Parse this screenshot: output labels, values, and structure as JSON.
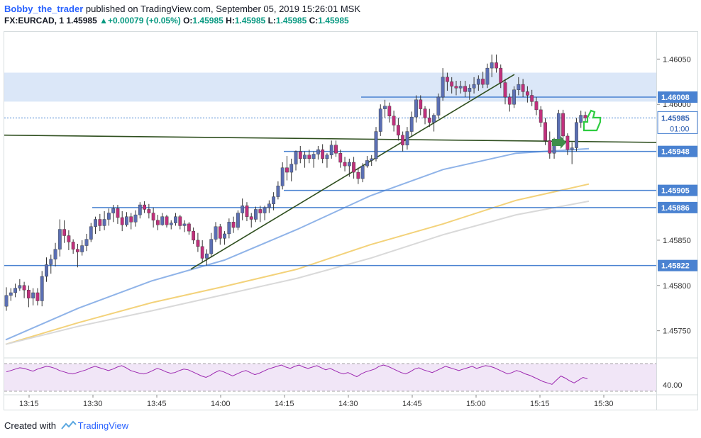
{
  "header": {
    "author": "Bobby_the_trader",
    "published_text": "published on TradingView.com, September 05, 2019 15:26:01 MSK",
    "symbol": "FX:EURCAD, 1",
    "last": "1.45985",
    "change": "+0.00079 (+0.05%)",
    "o_label": "O:",
    "o": "1.45985",
    "h_label": "H:",
    "h": "1.45985",
    "l_label": "L:",
    "l": "1.45985",
    "c_label": "C:",
    "c": "1.45985"
  },
  "footer": {
    "created_with": "Created with",
    "brand": "TradingView"
  },
  "colors": {
    "up": "#5b6fb3",
    "down": "#c0307c",
    "blue_ma": "#8fb3e8",
    "yellow_ma": "#f3d27a",
    "gray_ma": "#d9d9d9",
    "level": "#4a82d1",
    "trend": "#2f4f1f",
    "zone": "#dbe7f8",
    "rsi_bg": "#f1e6f7",
    "rsi_line": "#9c27b0",
    "icons": "#2e7d32"
  },
  "chart_data": {
    "type": "candlestick",
    "instrument": "FX:EURCAD",
    "timeframe": "1",
    "x_tick_labels": [
      "13:15",
      "13:30",
      "13:45",
      "14:00",
      "14:15",
      "14:30",
      "14:45",
      "15:00",
      "15:15",
      "15:30"
    ],
    "y_tick_labels": [
      "1.46050",
      "1.46000",
      "1.45850",
      "1.45800",
      "1.45750"
    ],
    "price_range": [
      1.4572,
      1.4608
    ],
    "resistance_zone": [
      1.46003,
      1.46035
    ],
    "horizontal_levels": [
      {
        "label": "1.46008",
        "value": 1.46008
      },
      {
        "label": "1.45948",
        "value": 1.45948
      },
      {
        "label": "1.45905",
        "value": 1.45905
      },
      {
        "label": "1.45886",
        "value": 1.45886
      },
      {
        "label": "1.45822",
        "value": 1.45822
      }
    ],
    "current_price": {
      "label": "1.45985",
      "value": 1.45985,
      "countdown": "01:00"
    },
    "rising_trendline": [
      {
        "time": "13:53",
        "price": 1.45818
      },
      {
        "time": "15:09",
        "price": 1.46033
      }
    ],
    "flat_trendline": [
      {
        "time": "13:09",
        "price": 1.45966
      },
      {
        "time": "15:33",
        "price": 1.45958
      }
    ],
    "candles_ohlc": [
      [
        1.45777,
        1.45798,
        1.45772,
        1.45789
      ],
      [
        1.45789,
        1.45797,
        1.45783,
        1.45792
      ],
      [
        1.45792,
        1.45802,
        1.45787,
        1.45797
      ],
      [
        1.45797,
        1.45807,
        1.45794,
        1.458
      ],
      [
        1.458,
        1.45804,
        1.45786,
        1.45795
      ],
      [
        1.45795,
        1.458,
        1.45776,
        1.45786
      ],
      [
        1.45786,
        1.45797,
        1.45778,
        1.45792
      ],
      [
        1.45792,
        1.45797,
        1.45778,
        1.45783
      ],
      [
        1.45783,
        1.45816,
        1.45777,
        1.4581
      ],
      [
        1.4581,
        1.45831,
        1.45804,
        1.45823
      ],
      [
        1.45823,
        1.45834,
        1.45813,
        1.45829
      ],
      [
        1.45829,
        1.45847,
        1.45821,
        1.4584
      ],
      [
        1.4584,
        1.45873,
        1.45832,
        1.45862
      ],
      [
        1.45862,
        1.45872,
        1.45847,
        1.45855
      ],
      [
        1.45855,
        1.45861,
        1.45839,
        1.45848
      ],
      [
        1.45848,
        1.45851,
        1.45835,
        1.4584
      ],
      [
        1.4584,
        1.45846,
        1.4582,
        1.45837
      ],
      [
        1.45837,
        1.4585,
        1.45833,
        1.45844
      ],
      [
        1.45844,
        1.45857,
        1.45838,
        1.45851
      ],
      [
        1.45851,
        1.45869,
        1.45848,
        1.45865
      ],
      [
        1.45865,
        1.45876,
        1.45857,
        1.45873
      ],
      [
        1.45873,
        1.45879,
        1.4586,
        1.45866
      ],
      [
        1.45866,
        1.45882,
        1.45861,
        1.45873
      ],
      [
        1.45873,
        1.45885,
        1.45866,
        1.4588
      ],
      [
        1.4588,
        1.45889,
        1.4587,
        1.45885
      ],
      [
        1.45885,
        1.45889,
        1.45868,
        1.45875
      ],
      [
        1.45875,
        1.45882,
        1.4586,
        1.45867
      ],
      [
        1.45867,
        1.45881,
        1.45865,
        1.45876
      ],
      [
        1.45876,
        1.4588,
        1.45862,
        1.4587
      ],
      [
        1.4587,
        1.45883,
        1.45865,
        1.45878
      ],
      [
        1.45878,
        1.45892,
        1.45874,
        1.45889
      ],
      [
        1.45889,
        1.45893,
        1.4588,
        1.45884
      ],
      [
        1.45884,
        1.4589,
        1.45874,
        1.4588
      ],
      [
        1.4588,
        1.45886,
        1.45864,
        1.45872
      ],
      [
        1.45872,
        1.45878,
        1.45861,
        1.45867
      ],
      [
        1.45867,
        1.4588,
        1.45866,
        1.45876
      ],
      [
        1.45876,
        1.45878,
        1.45864,
        1.45867
      ],
      [
        1.45867,
        1.45872,
        1.45862,
        1.45869
      ],
      [
        1.45869,
        1.4588,
        1.45866,
        1.45876
      ],
      [
        1.45876,
        1.45878,
        1.45862,
        1.45866
      ],
      [
        1.45866,
        1.45872,
        1.45859,
        1.45868
      ],
      [
        1.45868,
        1.4587,
        1.45856,
        1.4586
      ],
      [
        1.4586,
        1.45864,
        1.45846,
        1.4585
      ],
      [
        1.4585,
        1.45858,
        1.45837,
        1.45843
      ],
      [
        1.45843,
        1.4585,
        1.45826,
        1.4583
      ],
      [
        1.4583,
        1.4584,
        1.45822,
        1.45835
      ],
      [
        1.45835,
        1.45858,
        1.45831,
        1.45851
      ],
      [
        1.45851,
        1.4587,
        1.45848,
        1.45865
      ],
      [
        1.45865,
        1.45868,
        1.45845,
        1.45852
      ],
      [
        1.45852,
        1.4586,
        1.45845,
        1.45857
      ],
      [
        1.45857,
        1.45874,
        1.45852,
        1.4587
      ],
      [
        1.4587,
        1.45876,
        1.45858,
        1.45864
      ],
      [
        1.45864,
        1.45883,
        1.45861,
        1.4588
      ],
      [
        1.4588,
        1.45896,
        1.45872,
        1.45888
      ],
      [
        1.45888,
        1.45892,
        1.45871,
        1.45876
      ],
      [
        1.45876,
        1.4588,
        1.45864,
        1.45873
      ],
      [
        1.45873,
        1.45887,
        1.4587,
        1.45884
      ],
      [
        1.45884,
        1.45888,
        1.4587,
        1.4588
      ],
      [
        1.4588,
        1.45888,
        1.45872,
        1.45886
      ],
      [
        1.45886,
        1.45894,
        1.4588,
        1.4589
      ],
      [
        1.4589,
        1.45903,
        1.45883,
        1.45898
      ],
      [
        1.45898,
        1.45915,
        1.45895,
        1.4591
      ],
      [
        1.4591,
        1.45936,
        1.45906,
        1.4593
      ],
      [
        1.4593,
        1.45943,
        1.45916,
        1.45925
      ],
      [
        1.45925,
        1.4594,
        1.45915,
        1.45934
      ],
      [
        1.45934,
        1.45949,
        1.45927,
        1.45948
      ],
      [
        1.45948,
        1.45954,
        1.45935,
        1.4594
      ],
      [
        1.4594,
        1.45948,
        1.4593,
        1.45944
      ],
      [
        1.45944,
        1.4595,
        1.45935,
        1.4594
      ],
      [
        1.4594,
        1.45948,
        1.4593,
        1.45945
      ],
      [
        1.45945,
        1.45954,
        1.45939,
        1.4595
      ],
      [
        1.4595,
        1.45956,
        1.45935,
        1.4594
      ],
      [
        1.4594,
        1.45946,
        1.4593,
        1.45944
      ],
      [
        1.45944,
        1.4596,
        1.4594,
        1.45955
      ],
      [
        1.45955,
        1.4596,
        1.45942,
        1.45946
      ],
      [
        1.45946,
        1.4595,
        1.4593,
        1.45936
      ],
      [
        1.45936,
        1.45942,
        1.45926,
        1.45932
      ],
      [
        1.45932,
        1.4594,
        1.4592,
        1.45936
      ],
      [
        1.45936,
        1.45942,
        1.45918,
        1.45925
      ],
      [
        1.45925,
        1.4593,
        1.45912,
        1.45918
      ],
      [
        1.45918,
        1.45935,
        1.45914,
        1.45932
      ],
      [
        1.45932,
        1.45943,
        1.4593,
        1.45938
      ],
      [
        1.45938,
        1.45944,
        1.45932,
        1.4594
      ],
      [
        1.4594,
        1.45975,
        1.45937,
        1.4597
      ],
      [
        1.4597,
        1.46,
        1.45965,
        1.45995
      ],
      [
        1.45995,
        1.46005,
        1.45985,
        1.45998
      ],
      [
        1.45998,
        1.46002,
        1.4598,
        1.45987
      ],
      [
        1.45987,
        1.45993,
        1.4597,
        1.45977
      ],
      [
        1.45977,
        1.45985,
        1.4596,
        1.45966
      ],
      [
        1.45966,
        1.4597,
        1.45948,
        1.45955
      ],
      [
        1.45955,
        1.45975,
        1.4595,
        1.4597
      ],
      [
        1.4597,
        1.45992,
        1.45965,
        1.45986
      ],
      [
        1.45986,
        1.4601,
        1.4598,
        1.46005
      ],
      [
        1.46005,
        1.4601,
        1.45988,
        1.45995
      ],
      [
        1.45995,
        1.45998,
        1.45978,
        1.45985
      ],
      [
        1.45985,
        1.45995,
        1.45975,
        1.4598
      ],
      [
        1.4598,
        1.4599,
        1.4597,
        1.45988
      ],
      [
        1.45988,
        1.46012,
        1.45984,
        1.46008
      ],
      [
        1.46008,
        1.4604,
        1.46004,
        1.4603
      ],
      [
        1.4603,
        1.46035,
        1.46015,
        1.46025
      ],
      [
        1.46025,
        1.4603,
        1.46012,
        1.4602
      ],
      [
        1.4602,
        1.46026,
        1.4601,
        1.46018
      ],
      [
        1.46018,
        1.46026,
        1.46012,
        1.4602
      ],
      [
        1.4602,
        1.46026,
        1.46008,
        1.46014
      ],
      [
        1.46014,
        1.46022,
        1.46005,
        1.46018
      ],
      [
        1.46018,
        1.4603,
        1.46012,
        1.46022
      ],
      [
        1.46022,
        1.46032,
        1.46015,
        1.46028
      ],
      [
        1.46028,
        1.46036,
        1.46018,
        1.46022
      ],
      [
        1.46022,
        1.46045,
        1.46018,
        1.4604
      ],
      [
        1.4604,
        1.46055,
        1.4603,
        1.46046
      ],
      [
        1.46046,
        1.46055,
        1.46035,
        1.4604
      ],
      [
        1.4604,
        1.46044,
        1.46018,
        1.46024
      ],
      [
        1.46024,
        1.46028,
        1.46,
        1.46008
      ],
      [
        1.46008,
        1.46012,
        1.45992,
        1.46
      ],
      [
        1.46,
        1.4602,
        1.45996,
        1.46016
      ],
      [
        1.46016,
        1.4603,
        1.4601,
        1.46022
      ],
      [
        1.46022,
        1.46028,
        1.46008,
        1.46014
      ],
      [
        1.46014,
        1.4602,
        1.46002,
        1.4601
      ],
      [
        1.4601,
        1.46016,
        1.45998,
        1.46003
      ],
      [
        1.46003,
        1.46008,
        1.45988,
        1.45994
      ],
      [
        1.45994,
        1.45998,
        1.45975,
        1.4598
      ],
      [
        1.4598,
        1.45985,
        1.45955,
        1.4596
      ],
      [
        1.4596,
        1.4597,
        1.4594,
        1.45946
      ],
      [
        1.45946,
        1.45963,
        1.4594,
        1.45958
      ],
      [
        1.45958,
        1.45994,
        1.45955,
        1.4599
      ],
      [
        1.4599,
        1.45994,
        1.4596,
        1.45965
      ],
      [
        1.45965,
        1.45968,
        1.45944,
        1.4595
      ],
      [
        1.4595,
        1.45958,
        1.45934,
        1.45952
      ],
      [
        1.45952,
        1.45985,
        1.45948,
        1.4598
      ],
      [
        1.4598,
        1.45993,
        1.45974,
        1.45988
      ],
      [
        1.45988,
        1.45992,
        1.4598,
        1.45985
      ]
    ],
    "ma_series": [
      {
        "color": "blue",
        "values": [
          1.4574,
          1.45775,
          1.45805,
          1.45828,
          1.45862,
          1.45899,
          1.45928,
          1.45946,
          1.45951
        ]
      },
      {
        "color": "yellow",
        "values": [
          1.45735,
          1.45759,
          1.45781,
          1.45799,
          1.45818,
          1.45845,
          1.45868,
          1.45894,
          1.45912
        ]
      },
      {
        "color": "gray",
        "values": [
          1.45735,
          1.45755,
          1.45772,
          1.4579,
          1.45808,
          1.4583,
          1.45856,
          1.45878,
          1.45893
        ]
      }
    ],
    "rsi": {
      "axis_label": "40.00",
      "band": [
        30,
        70
      ],
      "values": [
        58,
        60,
        62,
        64,
        63,
        61,
        59,
        62,
        64,
        66,
        65,
        63,
        60,
        58,
        56,
        55,
        57,
        59,
        61,
        64,
        66,
        64,
        62,
        60,
        62,
        65,
        67,
        64,
        60,
        58,
        56,
        55,
        57,
        60,
        63,
        61,
        58,
        56,
        57,
        60,
        62,
        61,
        58,
        55,
        52,
        50,
        53,
        57,
        60,
        58,
        55,
        52,
        55,
        58,
        60,
        57,
        54,
        56,
        59,
        62,
        64,
        66,
        68,
        65,
        63,
        66,
        68,
        65,
        63,
        65,
        67,
        64,
        61,
        63,
        60,
        57,
        55,
        57,
        54,
        51,
        55,
        58,
        60,
        62,
        66,
        68,
        66,
        63,
        60,
        57,
        55,
        58,
        62,
        64,
        61,
        59,
        57,
        60,
        63,
        66,
        64,
        62,
        60,
        62,
        64,
        66,
        63,
        65,
        67,
        66,
        64,
        61,
        58,
        55,
        57,
        60,
        58,
        55,
        53,
        50,
        47,
        44,
        42,
        40,
        46,
        52,
        49,
        45,
        42,
        46,
        50,
        48
      ]
    }
  }
}
